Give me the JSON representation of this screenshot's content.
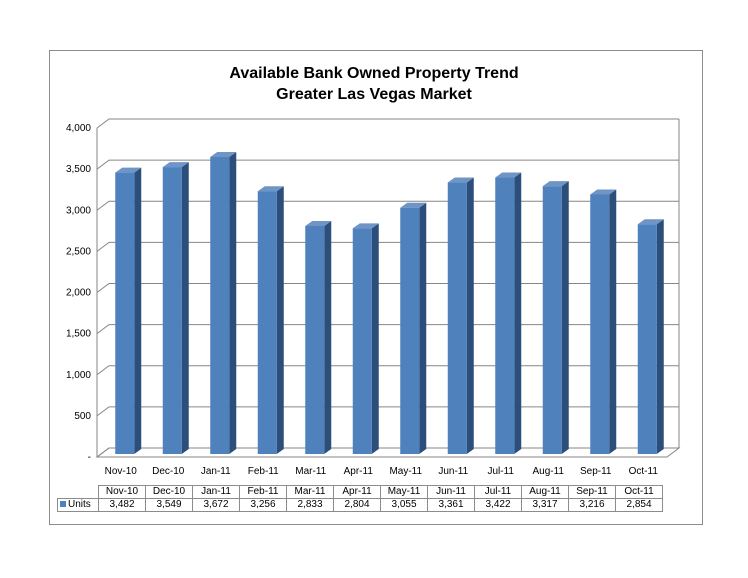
{
  "chart_data": {
    "type": "bar",
    "title": "Available Bank Owned Property Trend",
    "subtitle": "Greater Las Vegas Market",
    "categories": [
      "Nov-10",
      "Dec-10",
      "Jan-11",
      "Feb-11",
      "Mar-11",
      "Apr-11",
      "May-11",
      "Jun-11",
      "Jul-11",
      "Aug-11",
      "Sep-11",
      "Oct-11"
    ],
    "series": [
      {
        "name": "Units",
        "values": [
          3482,
          3549,
          3672,
          3256,
          2833,
          2804,
          3055,
          3361,
          3422,
          3317,
          3216,
          2854
        ]
      }
    ],
    "value_labels": [
      "3,482",
      "3,549",
      "3,672",
      "3,256",
      "2,833",
      "2,804",
      "3,055",
      "3,361",
      "3,422",
      "3,317",
      "3,216",
      "2,854"
    ],
    "yticks": [
      "-",
      "500",
      "1,000",
      "1,500",
      "2,000",
      "2,500",
      "3,000",
      "3,500",
      "4,000"
    ],
    "ylim": [
      0,
      4000
    ],
    "grid": true,
    "style": "3d-column",
    "data_table": true,
    "colors": {
      "bar": "#4f81bd",
      "bar_side": "#2b4f7a",
      "bar_top": "#6f94c6",
      "grid": "#868686",
      "wall": "#ffffff"
    }
  }
}
